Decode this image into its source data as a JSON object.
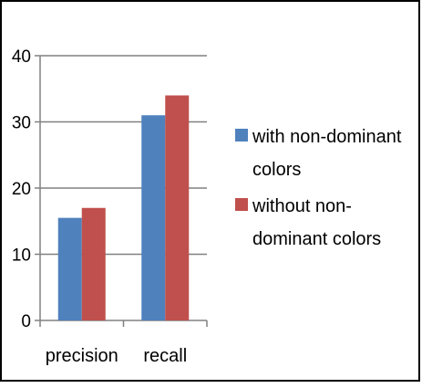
{
  "chart_data": {
    "type": "bar",
    "categories": [
      "precision",
      "recall"
    ],
    "series": [
      {
        "name": "with non-dominant colors",
        "values": [
          15.5,
          31
        ],
        "color": "#4F81BD"
      },
      {
        "name": "without non-dominant colors",
        "values": [
          17,
          34
        ],
        "color": "#C0504D"
      }
    ],
    "title": "",
    "xlabel": "",
    "ylabel": "",
    "ylim": [
      0,
      40
    ],
    "yticks": [
      0,
      10,
      20,
      30,
      40
    ],
    "grid": "horizontal",
    "legend_position": "right",
    "legend_lines": [
      [
        "with non-dominant",
        "colors"
      ],
      [
        "without non-",
        "dominant colors"
      ]
    ]
  }
}
